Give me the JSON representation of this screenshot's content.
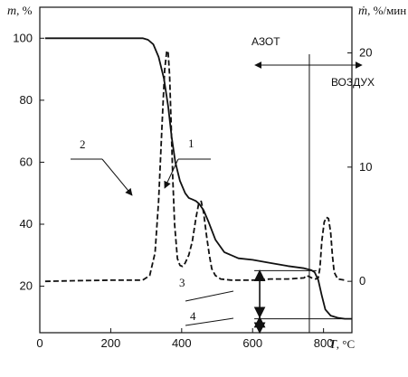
{
  "chart_data": {
    "type": "line",
    "x_axis": {
      "title": "T",
      "unit": ", °C",
      "ticks": [
        0,
        200,
        400,
        600,
        800
      ],
      "range": [
        0,
        880
      ]
    },
    "y_left": {
      "title": "m",
      "unit": ", %",
      "ticks": [
        20,
        40,
        60,
        80,
        100
      ],
      "range": [
        5,
        110
      ]
    },
    "y_right": {
      "title": "ṁ",
      "unit": ", %/мин",
      "ticks": [
        0,
        10,
        20
      ],
      "range": [
        -4.5,
        24
      ]
    },
    "series": [
      {
        "curve": "1",
        "axis": "left",
        "style": "solid",
        "x": [
          15,
          100,
          200,
          290,
          305,
          320,
          335,
          350,
          362,
          372,
          382,
          395,
          410,
          420,
          430,
          440,
          450,
          462,
          475,
          495,
          520,
          560,
          600,
          650,
          700,
          745,
          765,
          775,
          785,
          795,
          805,
          820,
          840,
          860,
          880
        ],
        "y": [
          100,
          100,
          100,
          100,
          99.5,
          98,
          94,
          87,
          78,
          68,
          60,
          54,
          50,
          48.5,
          48,
          47.5,
          46.5,
          44.5,
          41,
          35,
          31,
          29,
          28.5,
          27.5,
          26.5,
          25.8,
          25.2,
          24.5,
          22,
          17,
          12.5,
          10.5,
          9.8,
          9.5,
          9.5
        ]
      },
      {
        "curve": "2",
        "axis": "right",
        "style": "dashed",
        "x": [
          15,
          100,
          200,
          290,
          310,
          325,
          335,
          345,
          352,
          358,
          362,
          366,
          370,
          375,
          380,
          388,
          395,
          402,
          410,
          420,
          430,
          440,
          448,
          455,
          462,
          470,
          478,
          485,
          495,
          510,
          540,
          600,
          650,
          700,
          745,
          752,
          760,
          770,
          778,
          785,
          790,
          795,
          802,
          808,
          814,
          820,
          825,
          830,
          840,
          860
        ],
        "y": [
          0,
          0.05,
          0.1,
          0.1,
          0.5,
          2.5,
          7,
          14,
          18.5,
          20.2,
          20,
          18,
          14,
          9,
          5,
          2,
          1.4,
          1.3,
          1.6,
          2.3,
          3.5,
          5.5,
          6.8,
          7,
          6,
          4,
          2.3,
          1.1,
          0.5,
          0.2,
          0.1,
          0.1,
          0.2,
          0.2,
          0.3,
          0.5,
          0.4,
          0.25,
          0.2,
          0.3,
          1.2,
          3.5,
          5.2,
          5.6,
          5.5,
          4.3,
          2.3,
          0.8,
          0.2,
          0.1
        ]
      }
    ],
    "curve_labels": [
      "1",
      "2",
      "3",
      "4"
    ],
    "annotations": {
      "nitrogen": "АЗОТ",
      "air": "ВОЗДУХ"
    },
    "switch_temperature": 760,
    "bracket_x": 620,
    "bracket_3": [
      25,
      10
    ],
    "bracket_4": [
      10,
      5
    ],
    "reference_levels": [
      25,
      9.5
    ]
  }
}
